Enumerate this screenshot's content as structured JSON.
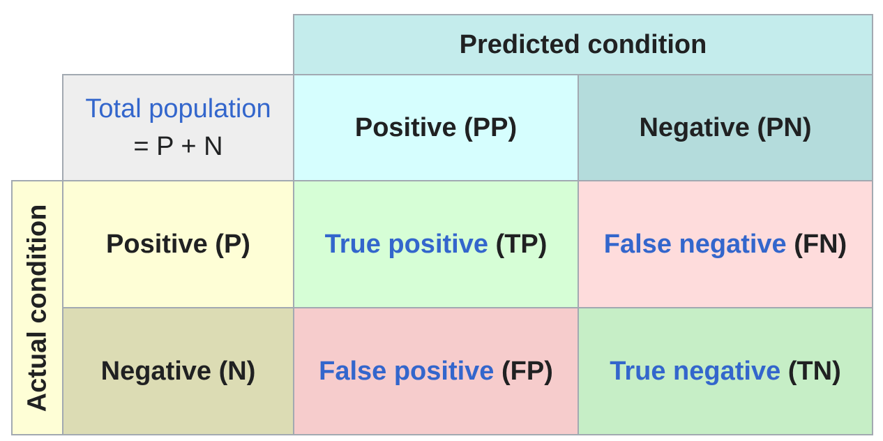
{
  "predicted_condition": "Predicted condition",
  "actual_condition": "Actual condition",
  "total_population": {
    "label": "Total population",
    "formula": "= P + N"
  },
  "predicted_positive": "Positive (PP)",
  "predicted_negative": "Negative (PN)",
  "actual_positive": "Positive (P)",
  "actual_negative": "Negative (N)",
  "true_positive": {
    "term": "True positive",
    "abbr": "(TP)"
  },
  "false_negative": {
    "term": "False negative",
    "abbr": "(FN)"
  },
  "false_positive": {
    "term": "False positive",
    "abbr": "(FP)"
  },
  "true_negative": {
    "term": "True negative",
    "abbr": "(TN)"
  },
  "colors": {
    "predicted_header": "#c4ecec",
    "total_population": "#eeeeee",
    "predicted_positive": "#d6fefe",
    "predicted_negative": "#b4dcdc",
    "actual_positive": "#fefed6",
    "actual_negative": "#dcdcb4",
    "true_positive": "#d6fed6",
    "false_negative": "#fedcdc",
    "false_positive": "#f6cccc",
    "true_negative": "#c6eec6",
    "link": "#3366cc",
    "border": "#a2a9b1"
  }
}
